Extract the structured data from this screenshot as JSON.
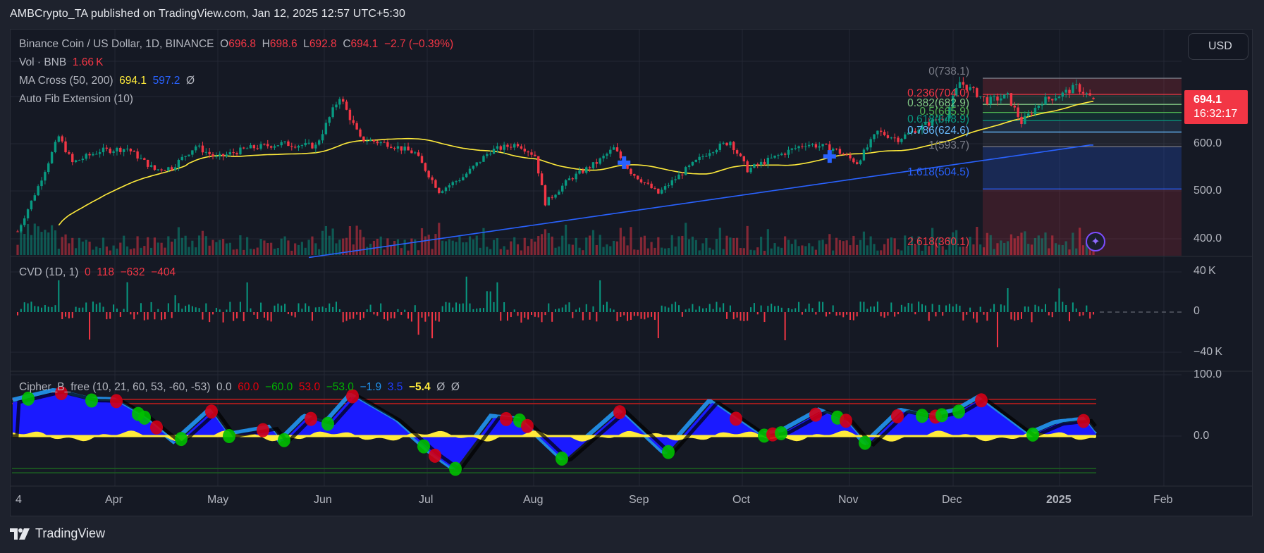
{
  "header": {
    "published": "AMBCrypto_TA published on TradingView.com, Jan 12, 2025 12:57 UTC+5:30"
  },
  "main_legend": {
    "symbol": "Binance Coin / US Dollar, 1D, BINANCE",
    "o_label": "O",
    "o": "696.8",
    "h_label": "H",
    "h": "698.6",
    "l_label": "L",
    "l": "692.8",
    "c_label": "C",
    "c": "694.1",
    "change": "−2.7 (−0.39%)"
  },
  "vol_legend": {
    "label": "Vol · BNB",
    "value": "1.66 K"
  },
  "ma_legend": {
    "label": "MA Cross (50, 200)",
    "ma50": "694.1",
    "ma200": "597.2",
    "extra": "Ø"
  },
  "fib_legend": {
    "label": "Auto Fib Extension (10)"
  },
  "cvd_legend": {
    "label": "CVD (1D, 1)",
    "v1": "0",
    "v2": "118",
    "v3": "−632",
    "v4": "−404"
  },
  "cipher_legend": {
    "label": "Cipher_B_free (10, 21, 60, 53, -60, -53)",
    "v0": "0.0",
    "v1": "60.0",
    "v2": "−60.0",
    "v3": "53.0",
    "v4": "−53.0",
    "v5": "−1.9",
    "v6": "3.5",
    "v7": "−5.4",
    "v8": "Ø",
    "v9": "Ø"
  },
  "currency_button": "USD",
  "last_price": {
    "price": "694.1",
    "countdown": "16:32:17",
    "color": "#f23645"
  },
  "price_axis": [
    "600.0",
    "500.0",
    "400.0"
  ],
  "cvd_axis": [
    "40 K",
    "0",
    "−40 K"
  ],
  "cipher_axis": [
    "100.0",
    "0.0"
  ],
  "time_axis": [
    "4",
    "Apr",
    "May",
    "Jun",
    "Jul",
    "Aug",
    "Sep",
    "Oct",
    "Nov",
    "Dec",
    "2025",
    "Feb"
  ],
  "fib_levels": [
    {
      "label": "0(738.1)",
      "ratio": 0,
      "price": 738.1,
      "color": "#787b86"
    },
    {
      "label": "0.236(704.0)",
      "ratio": 0.236,
      "price": 704.0,
      "color": "#f23645"
    },
    {
      "label": "0.382(682.9)",
      "ratio": 0.382,
      "price": 682.9,
      "color": "#81c784"
    },
    {
      "label": "0.5(665.9)",
      "ratio": 0.5,
      "price": 665.9,
      "color": "#4caf50"
    },
    {
      "label": "0.618(648.9)",
      "ratio": 0.618,
      "price": 648.9,
      "color": "#089981"
    },
    {
      "label": "0.786(624.6)",
      "ratio": 0.786,
      "price": 624.6,
      "color": "#64b5f6"
    },
    {
      "label": "1(593.7)",
      "ratio": 1,
      "price": 593.7,
      "color": "#787b86"
    },
    {
      "label": "1.618(504.5)",
      "ratio": 1.618,
      "price": 504.5,
      "color": "#2962ff"
    },
    {
      "label": "2.618(360.1)",
      "ratio": 2.618,
      "price": 360.1,
      "color": "#f23645"
    }
  ],
  "branding": {
    "logo_text": "TradingView"
  },
  "colors": {
    "up": "#089981",
    "down": "#f23645",
    "ma50": "#ffeb3b",
    "ma200": "#2962ff",
    "background": "#151924",
    "grid": "#232734"
  },
  "chart_data": {
    "type": "candlestick",
    "title": "Binance Coin / US Dollar, 1D, BINANCE",
    "x_range": [
      "2024-03-04",
      "2025-01-12"
    ],
    "ylim": [
      360,
      760
    ],
    "price_path": [
      {
        "date": "2024-03-04",
        "close": 415
      },
      {
        "date": "2024-03-10",
        "close": 510
      },
      {
        "date": "2024-03-16",
        "close": 615
      },
      {
        "date": "2024-03-20",
        "close": 560
      },
      {
        "date": "2024-03-28",
        "close": 585
      },
      {
        "date": "2024-04-05",
        "close": 590
      },
      {
        "date": "2024-04-13",
        "close": 545
      },
      {
        "date": "2024-04-18",
        "close": 550
      },
      {
        "date": "2024-04-25",
        "close": 595
      },
      {
        "date": "2024-05-01",
        "close": 570
      },
      {
        "date": "2024-05-10",
        "close": 590
      },
      {
        "date": "2024-05-20",
        "close": 600
      },
      {
        "date": "2024-05-30",
        "close": 595
      },
      {
        "date": "2024-06-06",
        "close": 700
      },
      {
        "date": "2024-06-12",
        "close": 610
      },
      {
        "date": "2024-06-20",
        "close": 600
      },
      {
        "date": "2024-06-28",
        "close": 580
      },
      {
        "date": "2024-07-05",
        "close": 500
      },
      {
        "date": "2024-07-12",
        "close": 530
      },
      {
        "date": "2024-07-20",
        "close": 585
      },
      {
        "date": "2024-07-28",
        "close": 600
      },
      {
        "date": "2024-08-02",
        "close": 575
      },
      {
        "date": "2024-08-05",
        "close": 475
      },
      {
        "date": "2024-08-12",
        "close": 525
      },
      {
        "date": "2024-08-20",
        "close": 560
      },
      {
        "date": "2024-08-25",
        "close": 590
      },
      {
        "date": "2024-08-30",
        "close": 540
      },
      {
        "date": "2024-09-07",
        "close": 495
      },
      {
        "date": "2024-09-15",
        "close": 545
      },
      {
        "date": "2024-09-22",
        "close": 585
      },
      {
        "date": "2024-09-28",
        "close": 605
      },
      {
        "date": "2024-10-03",
        "close": 545
      },
      {
        "date": "2024-10-12",
        "close": 575
      },
      {
        "date": "2024-10-20",
        "close": 600
      },
      {
        "date": "2024-10-28",
        "close": 590
      },
      {
        "date": "2024-11-04",
        "close": 560
      },
      {
        "date": "2024-11-10",
        "close": 625
      },
      {
        "date": "2024-11-16",
        "close": 610
      },
      {
        "date": "2024-11-24",
        "close": 640
      },
      {
        "date": "2024-11-30",
        "close": 660
      },
      {
        "date": "2024-12-04",
        "close": 730
      },
      {
        "date": "2024-12-08",
        "close": 710
      },
      {
        "date": "2024-12-12",
        "close": 690
      },
      {
        "date": "2024-12-18",
        "close": 700
      },
      {
        "date": "2024-12-22",
        "close": 645
      },
      {
        "date": "2024-12-28",
        "close": 690
      },
      {
        "date": "2025-01-03",
        "close": 705
      },
      {
        "date": "2025-01-07",
        "close": 720
      },
      {
        "date": "2025-01-12",
        "close": 694.1
      }
    ],
    "series": [
      {
        "name": "MA 50",
        "last": 694.1
      },
      {
        "name": "MA 200",
        "last": 597.2
      }
    ],
    "annotations": [
      "MA cross markers near 2024-08-28 and 2024-10-27",
      "Auto Fib Extension from 2024-12-09"
    ]
  }
}
